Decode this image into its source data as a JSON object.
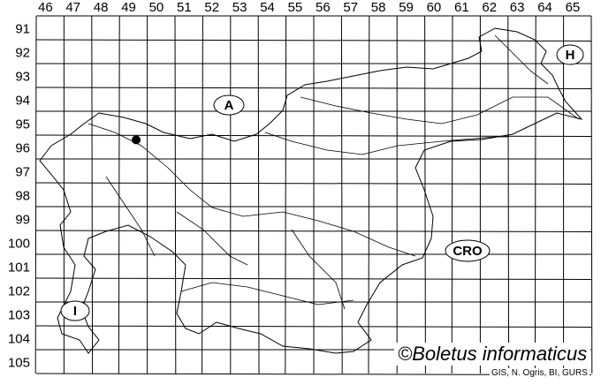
{
  "grid": {
    "columns": [
      "46",
      "47",
      "48",
      "49",
      "50",
      "51",
      "52",
      "53",
      "54",
      "55",
      "56",
      "57",
      "58",
      "59",
      "60",
      "61",
      "62",
      "63",
      "64",
      "65"
    ],
    "rows": [
      "91",
      "92",
      "93",
      "94",
      "95",
      "96",
      "97",
      "98",
      "99",
      "100",
      "101",
      "102",
      "103",
      "104",
      "105"
    ]
  },
  "countries": [
    {
      "label": "A",
      "name": "austria-label"
    },
    {
      "label": "H",
      "name": "hungary-label"
    },
    {
      "label": "CRO",
      "name": "croatia-label"
    },
    {
      "label": "I",
      "name": "italy-label"
    }
  ],
  "occurrence": {
    "column": "49",
    "row": "96"
  },
  "credit": "©Boletus informaticus",
  "source": "GIS, N. Ogris, BI, GURS"
}
